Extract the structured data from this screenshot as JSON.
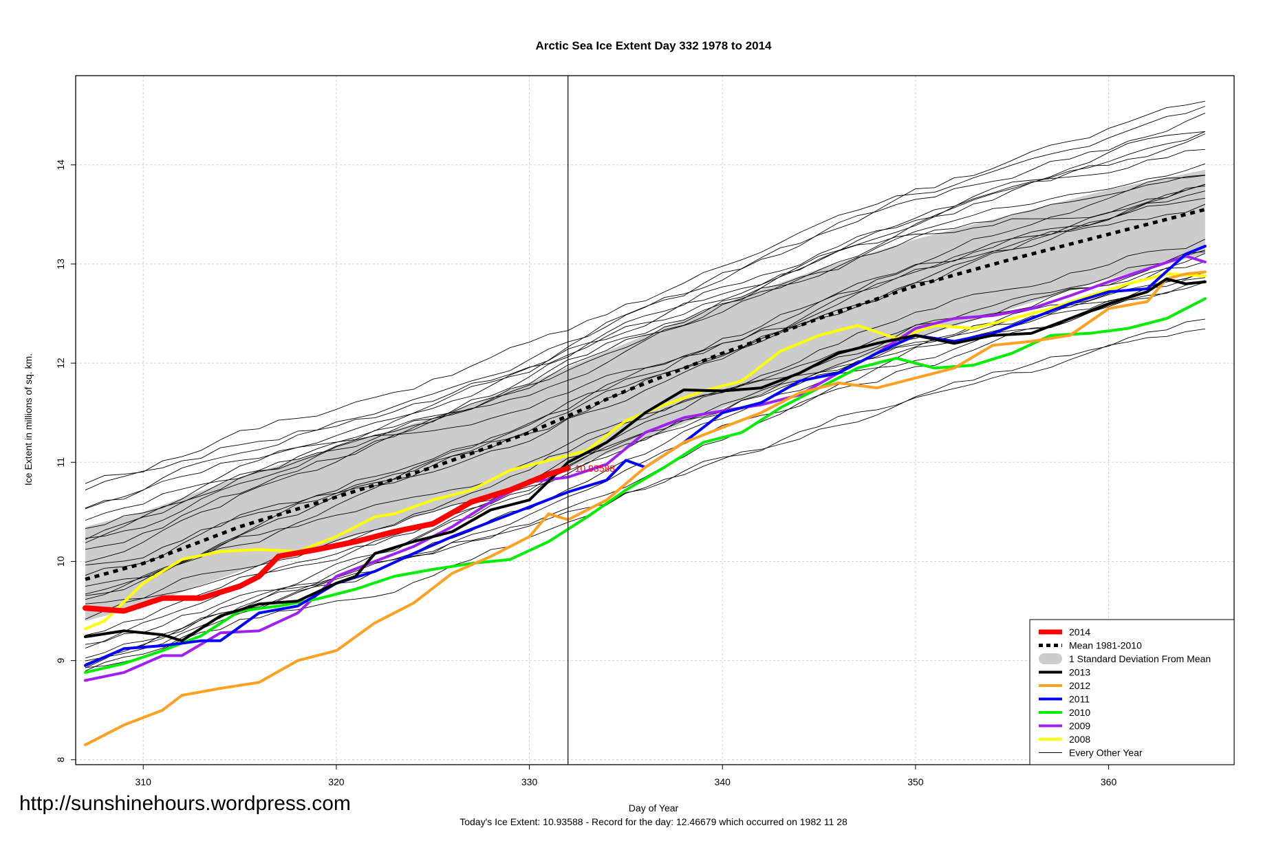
{
  "chart_data": {
    "type": "line",
    "title": "Arctic Sea Ice Extent Day 332 1978 to 2014",
    "xlabel": "Day of Year",
    "ylabel": "Ice Extent in millions of sq. km.",
    "footer": "Today's Ice Extent: 10.93588  - Record for the day: 12.46679 which occurred on 1982 11 28",
    "source_url": "http://sunshinehours.wordpress.com",
    "xlim": [
      306.5,
      366.5
    ],
    "ylim": [
      7.95,
      14.9
    ],
    "x_ticks": [
      310,
      320,
      330,
      340,
      350,
      360
    ],
    "y_ticks": [
      8,
      9,
      10,
      11,
      12,
      13,
      14
    ],
    "grid": true,
    "current_day": 332,
    "current_value_label": "10.93588",
    "current_value_color": "#ff0000",
    "legend_position": "bottom-right",
    "legend": [
      {
        "label": "2014",
        "color": "#ff0000",
        "style": "solid",
        "width": 7
      },
      {
        "label": "Mean 1981-2010",
        "color": "#000000",
        "style": "dashed",
        "width": 5
      },
      {
        "label": "1 Standard Deviation From Mean",
        "color": "#cccccc",
        "style": "band",
        "width": 16
      },
      {
        "label": "2013",
        "color": "#000000",
        "style": "solid",
        "width": 4
      },
      {
        "label": "2012",
        "color": "#ffa020",
        "style": "solid",
        "width": 4
      },
      {
        "label": "2011",
        "color": "#0000ff",
        "style": "solid",
        "width": 4
      },
      {
        "label": "2010",
        "color": "#00ee00",
        "style": "solid",
        "width": 4
      },
      {
        "label": "2009",
        "color": "#a020f0",
        "style": "solid",
        "width": 4
      },
      {
        "label": "2008",
        "color": "#ffff00",
        "style": "solid",
        "width": 4
      },
      {
        "label": "Every Other Year",
        "color": "#000000",
        "style": "solid",
        "width": 1
      }
    ],
    "mean": {
      "x": [
        307,
        310,
        315,
        320,
        325,
        330,
        335,
        340,
        345,
        350,
        355,
        360,
        365
      ],
      "y": [
        9.82,
        9.98,
        10.35,
        10.65,
        10.95,
        11.3,
        11.72,
        12.1,
        12.45,
        12.78,
        13.05,
        13.3,
        13.55
      ]
    },
    "sd_band": {
      "x": [
        307,
        310,
        315,
        320,
        325,
        330,
        335,
        340,
        345,
        350,
        355,
        360,
        365
      ],
      "lower": [
        9.4,
        9.55,
        9.9,
        10.2,
        10.5,
        10.8,
        11.15,
        11.55,
        11.9,
        12.25,
        12.55,
        12.85,
        13.1
      ],
      "upper": [
        10.35,
        10.5,
        10.85,
        11.15,
        11.45,
        11.8,
        12.2,
        12.6,
        12.95,
        13.25,
        13.5,
        13.75,
        13.95
      ]
    },
    "series": [
      {
        "name": "2014",
        "color": "#ff0000",
        "width": 8,
        "x": [
          307,
          309,
          311,
          313,
          315,
          316,
          317,
          319,
          321,
          323,
          325,
          327,
          329,
          331,
          332
        ],
        "y": [
          9.53,
          9.5,
          9.63,
          9.63,
          9.75,
          9.85,
          10.05,
          10.12,
          10.2,
          10.3,
          10.38,
          10.6,
          10.72,
          10.88,
          10.94
        ]
      },
      {
        "name": "2013",
        "color": "#000000",
        "width": 4,
        "x": [
          307,
          309,
          311,
          312,
          314,
          316,
          318,
          320,
          321,
          322,
          324,
          326,
          328,
          330,
          332,
          334,
          336,
          338,
          340,
          342,
          344,
          346,
          348,
          350,
          352,
          354,
          356,
          358,
          360,
          362,
          363,
          364,
          365
        ],
        "y": [
          9.24,
          9.3,
          9.26,
          9.2,
          9.45,
          9.57,
          9.6,
          9.78,
          9.85,
          10.08,
          10.2,
          10.3,
          10.52,
          10.62,
          11.0,
          11.2,
          11.5,
          11.73,
          11.72,
          11.75,
          11.9,
          12.1,
          12.2,
          12.28,
          12.2,
          12.28,
          12.3,
          12.45,
          12.6,
          12.72,
          12.85,
          12.8,
          12.82
        ]
      },
      {
        "name": "2012",
        "color": "#ffa020",
        "width": 4,
        "x": [
          307,
          309,
          311,
          312,
          314,
          316,
          318,
          320,
          322,
          324,
          326,
          328,
          330,
          331,
          332,
          334,
          336,
          338,
          340,
          342,
          344,
          346,
          348,
          350,
          352,
          354,
          356,
          358,
          360,
          362,
          363,
          364,
          365
        ],
        "y": [
          8.15,
          8.35,
          8.5,
          8.65,
          8.72,
          8.78,
          9.0,
          9.1,
          9.38,
          9.58,
          9.88,
          10.05,
          10.25,
          10.48,
          10.42,
          10.62,
          10.95,
          11.2,
          11.35,
          11.5,
          11.7,
          11.8,
          11.75,
          11.85,
          11.95,
          12.18,
          12.22,
          12.28,
          12.55,
          12.62,
          12.85,
          12.9,
          12.92
        ]
      },
      {
        "name": "2011",
        "color": "#0000ff",
        "width": 4,
        "x": [
          307,
          309,
          311,
          313,
          314,
          316,
          318,
          320,
          322,
          324,
          326,
          328,
          330,
          332,
          334,
          335,
          336,
          338,
          340,
          342,
          344,
          346,
          348,
          350,
          352,
          354,
          356,
          358,
          360,
          362,
          364,
          365
        ],
        "y": [
          8.95,
          9.12,
          9.15,
          9.2,
          9.2,
          9.48,
          9.55,
          9.78,
          9.9,
          10.08,
          10.25,
          10.4,
          10.55,
          10.7,
          10.82,
          11.02,
          10.95,
          11.2,
          11.5,
          11.6,
          11.82,
          11.9,
          12.1,
          12.28,
          12.22,
          12.3,
          12.45,
          12.6,
          12.72,
          12.75,
          13.1,
          13.18
        ]
      },
      {
        "name": "2010",
        "color": "#00ee00",
        "width": 4,
        "x": [
          307,
          309,
          311,
          313,
          315,
          317,
          319,
          321,
          323,
          325,
          327,
          329,
          331,
          333,
          335,
          337,
          339,
          341,
          343,
          345,
          347,
          349,
          351,
          353,
          355,
          357,
          359,
          361,
          363,
          365
        ],
        "y": [
          8.88,
          8.97,
          9.1,
          9.25,
          9.5,
          9.55,
          9.62,
          9.72,
          9.85,
          9.92,
          9.98,
          10.02,
          10.2,
          10.45,
          10.72,
          10.95,
          11.2,
          11.3,
          11.55,
          11.75,
          11.95,
          12.05,
          11.95,
          11.98,
          12.1,
          12.28,
          12.3,
          12.35,
          12.45,
          12.65
        ]
      },
      {
        "name": "2009",
        "color": "#a020f0",
        "width": 4,
        "x": [
          307,
          309,
          311,
          312,
          314,
          316,
          318,
          320,
          322,
          324,
          326,
          328,
          330,
          332,
          334,
          336,
          338,
          340,
          342,
          344,
          346,
          348,
          350,
          352,
          354,
          356,
          358,
          360,
          362,
          364,
          365
        ],
        "y": [
          8.8,
          8.88,
          9.05,
          9.05,
          9.28,
          9.3,
          9.48,
          9.85,
          10.0,
          10.15,
          10.35,
          10.6,
          10.8,
          10.85,
          10.98,
          11.3,
          11.45,
          11.52,
          11.58,
          11.68,
          11.9,
          12.1,
          12.35,
          12.45,
          12.48,
          12.55,
          12.68,
          12.82,
          12.95,
          13.08,
          13.02
        ]
      },
      {
        "name": "2008",
        "color": "#ffff00",
        "width": 4,
        "x": [
          307,
          308,
          310,
          312,
          314,
          316,
          318,
          320,
          322,
          323,
          325,
          327,
          329,
          331,
          333,
          335,
          337,
          339,
          341,
          343,
          345,
          347,
          349,
          351,
          353,
          355,
          357,
          359,
          361,
          363,
          365
        ],
        "y": [
          9.32,
          9.4,
          9.78,
          10.02,
          10.1,
          10.12,
          10.1,
          10.25,
          10.45,
          10.48,
          10.62,
          10.72,
          10.92,
          11.02,
          11.12,
          11.42,
          11.58,
          11.72,
          11.82,
          12.12,
          12.28,
          12.38,
          12.25,
          12.38,
          12.35,
          12.45,
          12.55,
          12.68,
          12.8,
          12.9,
          12.88
        ]
      }
    ]
  }
}
